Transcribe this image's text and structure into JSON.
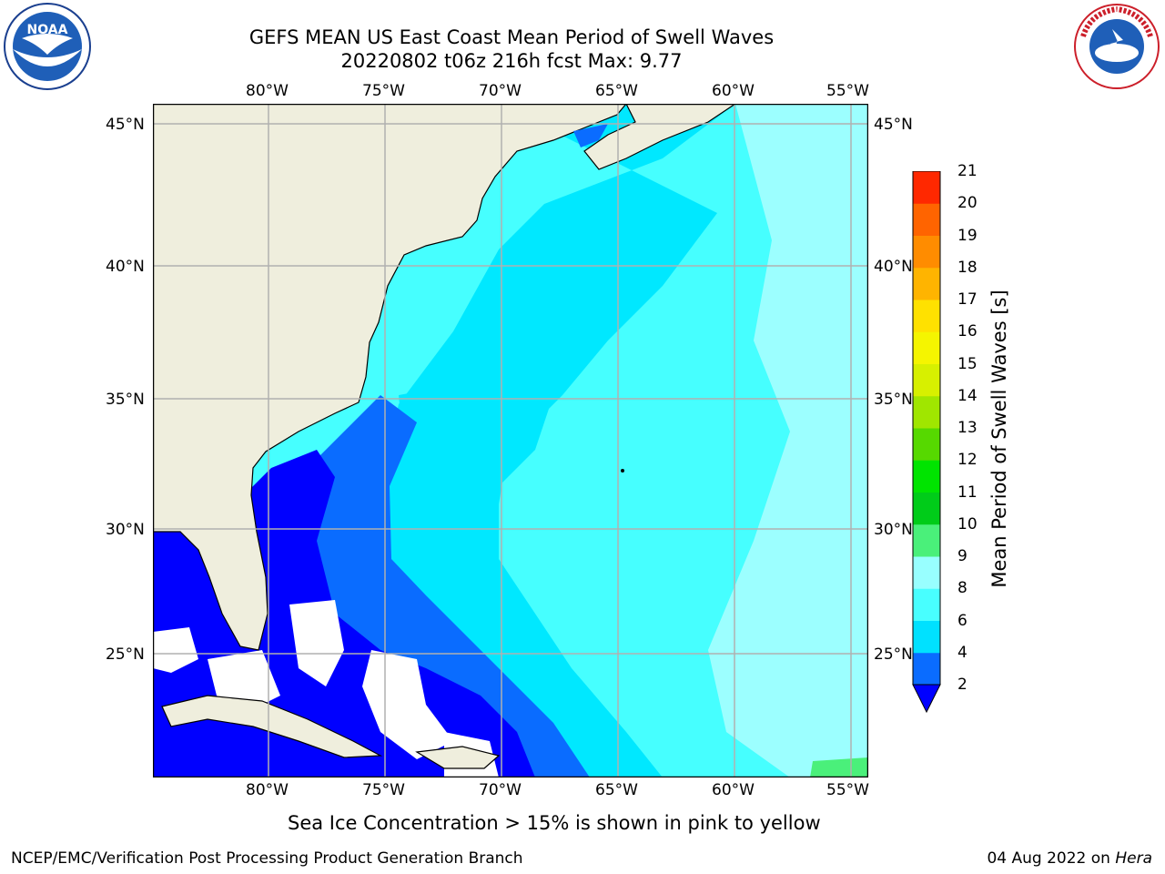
{
  "title": {
    "line1": "GEFS MEAN US East Coast Mean Period of Swell Waves",
    "line2": "20220802 t06z 216h fcst   Max: 9.77"
  },
  "map": {
    "lon_labels": [
      "80°W",
      "75°W",
      "70°W",
      "65°W",
      "60°W",
      "55°W"
    ],
    "lat_labels": [
      "45°N",
      "40°N",
      "35°N",
      "30°N",
      "25°N"
    ],
    "colors": {
      "land": "#efeedd",
      "coast": "#000000",
      "grid": "#b0b0b0",
      "no_data": "#ffffff"
    }
  },
  "colorbar": {
    "label": "Mean Period of Swell Waves [s]",
    "ticks": [
      "2",
      "4",
      "6",
      "8",
      "9",
      "10",
      "11",
      "12",
      "13",
      "14",
      "15",
      "16",
      "17",
      "18",
      "19",
      "20",
      "21"
    ],
    "colors": [
      "#0a6cff",
      "#00e1ff",
      "#48ffff",
      "#98ffff",
      "#4af07a",
      "#00cc19",
      "#00e400",
      "#56d900",
      "#a0e600",
      "#d7f000",
      "#f5f500",
      "#ffe100",
      "#ffb400",
      "#ff8c00",
      "#ff6400",
      "#ff2800"
    ],
    "under_color": "#0000ff"
  },
  "legend_fill_levels": {
    "deep_blue": "#0000ff",
    "blue": "#0a6cff",
    "cyan": "#00e8ff",
    "light_cyan": "#46ffff",
    "pale_cyan": "#9cffff",
    "green": "#4af07a"
  },
  "caption": "Sea Ice Concentration > 15% is shown in pink to yellow",
  "footer": {
    "left": "NCEP/EMC/Verification Post Processing Product Generation Branch",
    "right_date": "04 Aug 2022 on ",
    "right_machine": "Hera"
  },
  "logos": {
    "left": "NOAA",
    "right": "NATIONAL WEATHER SERVICE"
  }
}
